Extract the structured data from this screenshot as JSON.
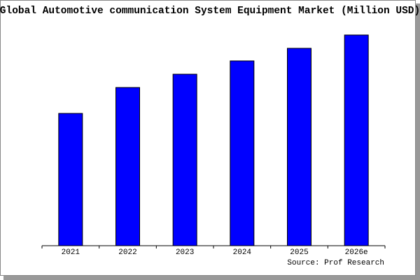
{
  "chart_data": {
    "type": "bar",
    "title": "Global Automotive communication System Equipment Market (Million USD)",
    "categories": [
      "2021",
      "2022",
      "2023",
      "2024",
      "2025",
      "2026e"
    ],
    "values": [
      189,
      226,
      245,
      264,
      282,
      301
    ],
    "color": "#0000ff",
    "ylim": [
      0,
      301
    ],
    "source": "Source: Prof Research"
  }
}
